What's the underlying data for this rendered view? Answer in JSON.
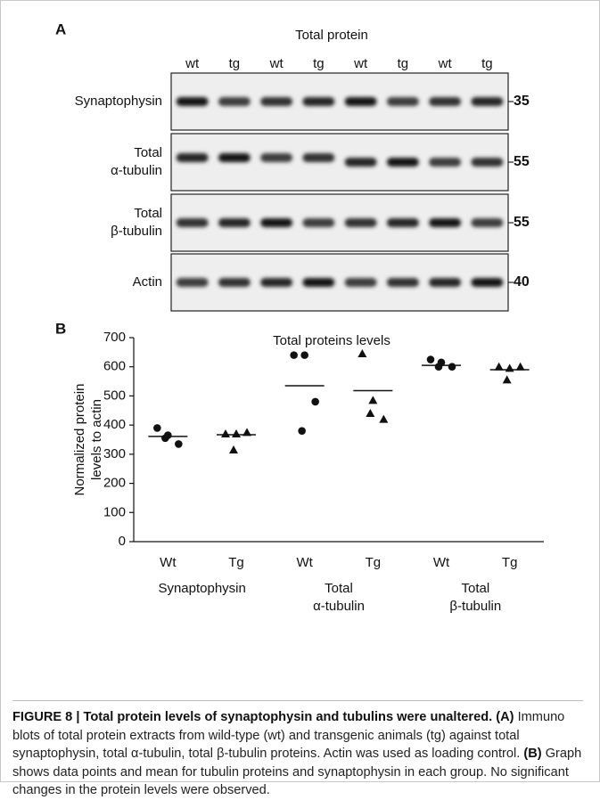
{
  "panel_a": {
    "label": "A",
    "title": "Total protein",
    "lanes": [
      "wt",
      "tg",
      "wt",
      "tg",
      "wt",
      "tg",
      "wt",
      "tg"
    ],
    "blots": [
      {
        "label": [
          "Synaptophysin"
        ],
        "marker": 35
      },
      {
        "label": [
          "Total",
          "α-tubulin"
        ],
        "marker": 55
      },
      {
        "label": [
          "Total",
          "β-tubulin"
        ],
        "marker": 55
      },
      {
        "label": [
          "Actin"
        ],
        "marker": 40
      }
    ]
  },
  "chart_data": {
    "type": "scatter",
    "panel_label": "B",
    "title": "Total proteins levels",
    "y_label": [
      "Normalized protein",
      "levels to actin"
    ],
    "categories": [
      "Wt",
      "Tg",
      "Wt",
      "Tg",
      "Wt",
      "Tg"
    ],
    "groups": [
      {
        "label": [
          "Synaptophysin"
        ]
      },
      {
        "label": [
          "Total",
          "α-tubulin"
        ]
      },
      {
        "label": [
          "Total",
          "β-tubulin"
        ]
      }
    ],
    "markers": [
      "circle",
      "triangle",
      "circle",
      "triangle",
      "circle",
      "triangle"
    ],
    "color": "#111111",
    "values": [
      [
        390,
        365,
        335,
        355
      ],
      [
        370,
        370,
        375,
        315
      ],
      [
        640,
        640,
        480,
        380
      ],
      [
        645,
        485,
        420,
        440
      ],
      [
        625,
        615,
        600,
        600
      ],
      [
        600,
        595,
        600,
        555
      ]
    ],
    "means": [
      361,
      367,
      535,
      518,
      605,
      590
    ],
    "ylim": [
      0,
      700
    ],
    "yticks": [
      0,
      100,
      200,
      300,
      400,
      500,
      600,
      700
    ]
  },
  "caption": {
    "segments": [
      {
        "text": "FIGURE 8 | Total protein levels of synaptophysin and tubulins were unaltered.",
        "bold": true
      },
      {
        "text": "(A)",
        "bold": true
      },
      {
        "text": "Immuno blots of total protein extracts from wild-type (wt) and transgenic animals (tg) against total synaptophysin, total α-tubulin, total β-tubulin proteins. Actin was used as loading control.",
        "bold": false
      },
      {
        "text": "(B)",
        "bold": true
      },
      {
        "text": "Graph shows data points and mean for tubulin proteins and synaptophysin in each group. No significant changes in the protein levels were observed.",
        "bold": false
      }
    ]
  }
}
